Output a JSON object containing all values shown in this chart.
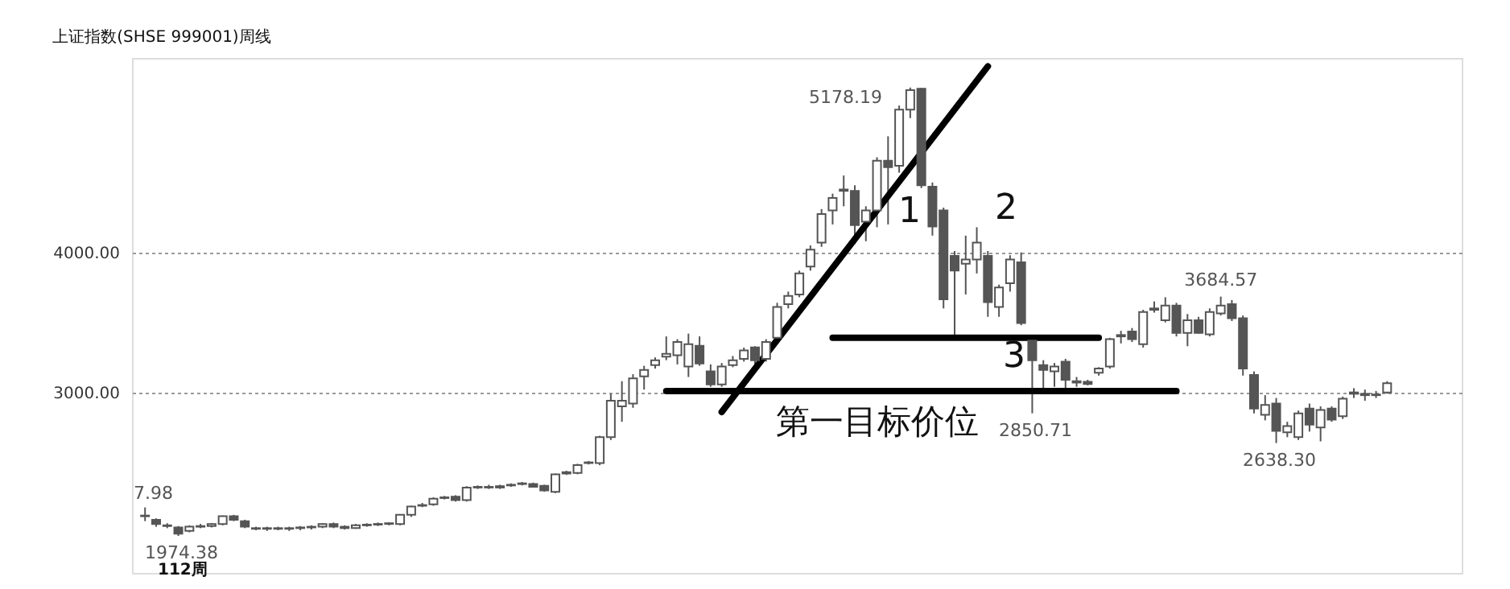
{
  "chart_data": {
    "type": "candlestick",
    "title": "上证指数(SHSE 999001)周线",
    "categories": [
      null,
      null,
      null,
      null,
      null,
      null,
      null,
      null,
      null,
      null,
      null,
      null,
      null,
      null,
      null,
      null,
      null,
      null,
      null,
      null,
      null,
      null,
      null,
      null,
      null,
      null,
      null,
      null,
      null,
      null,
      null,
      null,
      null,
      null,
      null,
      null,
      null,
      null,
      null,
      null,
      null,
      null,
      null,
      null,
      null,
      null,
      null,
      null,
      null,
      null,
      null,
      null,
      null,
      null,
      null,
      null,
      null,
      null,
      null,
      null,
      null,
      null,
      null,
      null,
      null,
      null,
      null,
      null,
      null,
      null,
      null,
      null,
      null,
      null,
      null,
      null,
      null,
      null,
      null,
      null,
      null,
      null,
      null,
      null,
      null,
      null,
      null,
      null,
      null,
      null,
      null,
      null,
      null,
      null,
      null,
      null,
      null,
      null,
      null,
      null,
      null,
      null,
      null,
      null,
      null,
      null,
      null,
      null,
      null,
      null,
      null,
      null,
      null
    ],
    "ohlc": [
      [
        2120,
        2177.98,
        2080,
        2115
      ],
      [
        2090,
        2100,
        2040,
        2060
      ],
      [
        2050,
        2065,
        2030,
        2045
      ],
      [
        2035,
        2045,
        1974.38,
        1990
      ],
      [
        2010,
        2050,
        2000,
        2040
      ],
      [
        2040,
        2060,
        2030,
        2045
      ],
      [
        2045,
        2065,
        2035,
        2060
      ],
      [
        2060,
        2120,
        2050,
        2115
      ],
      [
        2115,
        2125,
        2080,
        2090
      ],
      [
        2080,
        2090,
        2030,
        2040
      ],
      [
        2030,
        2040,
        2015,
        2025
      ],
      [
        2025,
        2040,
        2010,
        2030
      ],
      [
        2030,
        2040,
        2015,
        2025
      ],
      [
        2025,
        2040,
        2010,
        2030
      ],
      [
        2030,
        2045,
        2015,
        2035
      ],
      [
        2035,
        2050,
        2020,
        2040
      ],
      [
        2040,
        2065,
        2030,
        2060
      ],
      [
        2060,
        2070,
        2030,
        2040
      ],
      [
        2040,
        2050,
        2020,
        2030
      ],
      [
        2030,
        2060,
        2025,
        2050
      ],
      [
        2050,
        2065,
        2040,
        2055
      ],
      [
        2055,
        2070,
        2045,
        2060
      ],
      [
        2060,
        2070,
        2050,
        2065
      ],
      [
        2060,
        2130,
        2050,
        2125
      ],
      [
        2125,
        2190,
        2110,
        2185
      ],
      [
        2190,
        2210,
        2180,
        2195
      ],
      [
        2200,
        2250,
        2190,
        2240
      ],
      [
        2245,
        2260,
        2235,
        2250
      ],
      [
        2255,
        2265,
        2220,
        2230
      ],
      [
        2230,
        2330,
        2220,
        2320
      ],
      [
        2320,
        2335,
        2310,
        2325
      ],
      [
        2325,
        2340,
        2310,
        2320
      ],
      [
        2320,
        2340,
        2310,
        2330
      ],
      [
        2335,
        2350,
        2325,
        2340
      ],
      [
        2345,
        2360,
        2335,
        2350
      ],
      [
        2345,
        2355,
        2320,
        2325
      ],
      [
        2333,
        2340,
        2290,
        2300
      ],
      [
        2290,
        2420,
        2280,
        2414
      ],
      [
        2420,
        2440,
        2410,
        2430
      ],
      [
        2425,
        2490,
        2415,
        2480
      ],
      [
        2495,
        2510,
        2485,
        2500
      ],
      [
        2495,
        2690,
        2480,
        2680
      ],
      [
        2680,
        2990,
        2660,
        2940
      ],
      [
        2900,
        3080,
        2790,
        2940
      ],
      [
        2920,
        3130,
        2890,
        3100
      ],
      [
        3115,
        3190,
        3020,
        3160
      ],
      [
        3195,
        3250,
        3170,
        3230
      ],
      [
        3255,
        3400,
        3230,
        3275
      ],
      [
        3265,
        3380,
        3200,
        3360
      ],
      [
        3185,
        3420,
        3110,
        3345
      ],
      [
        3333,
        3400,
        3190,
        3207
      ],
      [
        3150,
        3200,
        3040,
        3057
      ],
      [
        3057,
        3210,
        3040,
        3185
      ],
      [
        3195,
        3260,
        3180,
        3230
      ],
      [
        3240,
        3320,
        3220,
        3300
      ],
      [
        3322,
        3330,
        3200,
        3230
      ],
      [
        3240,
        3380,
        3220,
        3360
      ],
      [
        3390,
        3640,
        3360,
        3610
      ],
      [
        3630,
        3720,
        3600,
        3690
      ],
      [
        3700,
        3870,
        3680,
        3850
      ],
      [
        3900,
        4050,
        3870,
        4020
      ],
      [
        4070,
        4310,
        4040,
        4275
      ],
      [
        4300,
        4420,
        4200,
        4390
      ],
      [
        4440,
        4550,
        4330,
        4450
      ],
      [
        4440,
        4480,
        4060,
        4195
      ],
      [
        4220,
        4330,
        4080,
        4300
      ],
      [
        4300,
        4680,
        4180,
        4655
      ],
      [
        4655,
        4830,
        4200,
        4610
      ],
      [
        4620,
        5050,
        4570,
        5020
      ],
      [
        5020,
        5178.19,
        4960,
        5160
      ],
      [
        5170,
        5175,
        4460,
        4480
      ],
      [
        4470,
        4500,
        4120,
        4185
      ],
      [
        4300,
        4320,
        3600,
        3665
      ],
      [
        3975,
        4010,
        3373,
        3870
      ],
      [
        3920,
        4120,
        3700,
        3950
      ],
      [
        3950,
        4180,
        3850,
        4070
      ],
      [
        3975,
        4010,
        3540,
        3645
      ],
      [
        3610,
        3770,
        3540,
        3750
      ],
      [
        3780,
        3980,
        3720,
        3950
      ],
      [
        3930,
        4000,
        3480,
        3495
      ],
      [
        3370,
        3390,
        2850.71,
        3230
      ],
      [
        3195,
        3230,
        3030,
        3160
      ],
      [
        3150,
        3210,
        3040,
        3185
      ],
      [
        3220,
        3240,
        3010,
        3090
      ],
      [
        3070,
        3110,
        3040,
        3080
      ],
      [
        3075,
        3090,
        3050,
        3060
      ],
      [
        3140,
        3180,
        3120,
        3170
      ],
      [
        3185,
        3390,
        3170,
        3380
      ],
      [
        3400,
        3440,
        3350,
        3410
      ],
      [
        3435,
        3460,
        3360,
        3380
      ],
      [
        3345,
        3590,
        3320,
        3575
      ],
      [
        3590,
        3650,
        3570,
        3600
      ],
      [
        3515,
        3680,
        3500,
        3620
      ],
      [
        3620,
        3640,
        3400,
        3425
      ],
      [
        3425,
        3560,
        3330,
        3515
      ],
      [
        3515,
        3540,
        3420,
        3425
      ],
      [
        3415,
        3600,
        3400,
        3575
      ],
      [
        3565,
        3684.57,
        3550,
        3620
      ],
      [
        3630,
        3660,
        3510,
        3530
      ],
      [
        3530,
        3550,
        3120,
        3170
      ],
      [
        3125,
        3150,
        2850,
        2885
      ],
      [
        2840,
        2980,
        2800,
        2910
      ],
      [
        2920,
        2960,
        2638.3,
        2725
      ],
      [
        2715,
        2790,
        2680,
        2760
      ],
      [
        2680,
        2870,
        2660,
        2850
      ],
      [
        2885,
        2920,
        2720,
        2770
      ],
      [
        2750,
        2900,
        2650,
        2875
      ],
      [
        2885,
        2900,
        2790,
        2805
      ],
      [
        2830,
        2970,
        2810,
        2955
      ],
      [
        2990,
        3030,
        2960,
        3000
      ],
      [
        2990,
        3020,
        2940,
        2980
      ],
      [
        2980,
        3010,
        2960,
        2985
      ],
      [
        3000,
        3080,
        2990,
        3065
      ]
    ],
    "ylim": [
      1710,
      5390
    ],
    "yticks": [
      {
        "value": 3000,
        "label": "3000.00"
      },
      {
        "value": 4000,
        "label": "4000.00"
      }
    ],
    "grid": "y",
    "series": [
      {
        "type": "line",
        "color": "#000000",
        "values": [
          null,
          null,
          null,
          null,
          null,
          null,
          null,
          null,
          null,
          null,
          null,
          null,
          null,
          null,
          null,
          null,
          null,
          null,
          null,
          null,
          null,
          null,
          null,
          null,
          null,
          null,
          null,
          null,
          null,
          null,
          null,
          null,
          null,
          null,
          null,
          null,
          null,
          null,
          null,
          null,
          null,
          null,
          null,
          null,
          null,
          null,
          null,
          null,
          null,
          null,
          null,
          null,
          2860,
          null,
          null,
          null,
          null,
          null,
          null,
          null,
          null,
          null,
          null,
          null,
          null,
          null,
          null,
          null,
          null,
          null,
          null,
          null,
          null,
          null,
          null,
          null,
          5330,
          null,
          null,
          null,
          null,
          null,
          null,
          null,
          null,
          null,
          null,
          null,
          null,
          null,
          null,
          null,
          null,
          null,
          null,
          null,
          null,
          null,
          null,
          null,
          null,
          null,
          null,
          null,
          null,
          null,
          null,
          null,
          null,
          null,
          null,
          null,
          null
        ]
      },
      {
        "type": "line",
        "color": "#000000",
        "values": [
          null,
          null,
          null,
          null,
          null,
          null,
          null,
          null,
          null,
          null,
          null,
          null,
          null,
          null,
          null,
          null,
          null,
          null,
          null,
          null,
          null,
          null,
          null,
          null,
          null,
          null,
          null,
          null,
          null,
          null,
          null,
          null,
          null,
          null,
          null,
          null,
          null,
          null,
          null,
          null,
          null,
          null,
          null,
          null,
          null,
          null,
          null,
          null,
          null,
          null,
          null,
          null,
          null,
          null,
          null,
          null,
          null,
          null,
          null,
          null,
          null,
          null,
          3390,
          null,
          null,
          null,
          null,
          null,
          null,
          null,
          null,
          null,
          null,
          null,
          null,
          null,
          null,
          null,
          null,
          null,
          null,
          null,
          null,
          null,
          null,
          null,
          3390,
          null,
          null,
          null,
          null,
          null,
          null,
          null,
          null,
          null,
          null,
          null,
          null,
          null,
          null,
          null,
          null,
          null,
          null,
          null,
          null,
          null,
          null,
          null,
          null,
          null,
          null
        ]
      },
      {
        "type": "line",
        "color": "#000000",
        "values": [
          null,
          null,
          null,
          null,
          null,
          null,
          null,
          null,
          null,
          null,
          null,
          null,
          null,
          null,
          null,
          null,
          null,
          null,
          null,
          null,
          null,
          null,
          null,
          null,
          null,
          null,
          null,
          null,
          null,
          null,
          null,
          null,
          null,
          null,
          null,
          null,
          null,
          null,
          null,
          null,
          null,
          null,
          null,
          null,
          null,
          null,
          null,
          3010,
          null,
          null,
          null,
          null,
          null,
          null,
          null,
          null,
          null,
          null,
          null,
          null,
          null,
          null,
          null,
          null,
          null,
          null,
          null,
          null,
          null,
          null,
          null,
          null,
          null,
          null,
          null,
          null,
          null,
          null,
          null,
          null,
          null,
          null,
          null,
          null,
          null,
          null,
          null,
          null,
          null,
          null,
          null,
          null,
          null,
          3010,
          null,
          null,
          null,
          null,
          null,
          null,
          null,
          null,
          null,
          null,
          null,
          null,
          null,
          null,
          null,
          null,
          null,
          null,
          null
        ]
      }
    ],
    "annotations": [
      "5178.19",
      {
        "text": "3684.57",
        "y": 3684.57
      },
      {
        "text": "2850.71",
        "y": 2850.71
      },
      {
        "text": "2638.30",
        "y": 2638.3
      },
      "7.98",
      {
        "text": "1974.38",
        "y": 1974.38
      },
      "112周",
      "1",
      "2",
      "3",
      "第一目标价位"
    ]
  }
}
